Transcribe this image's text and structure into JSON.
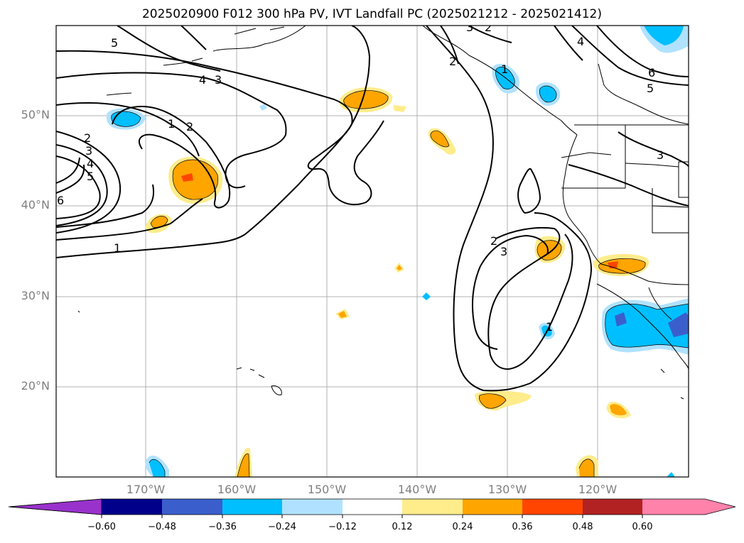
{
  "title": "2025020900 F012 300 hPa PV, IVT Landfall PC (2025021212 - 2025021412)",
  "lat_labels": [
    "50°N",
    "40°N",
    "30°N",
    "20°N"
  ],
  "lon_labels": [
    "170°W",
    "160°W",
    "150°W",
    "140°W",
    "130°W",
    "120°W"
  ],
  "colorbar": {
    "ticks": [
      "−0.60",
      "−0.48",
      "−0.36",
      "−0.24",
      "−0.12",
      "0.12",
      "0.24",
      "0.36",
      "0.48",
      "0.60"
    ],
    "colors": [
      "#9932cc",
      "#00008b",
      "#3a5fcd",
      "#00bfff",
      "#b0e2ff",
      "#ffffff",
      "#ffec8b",
      "#ffa500",
      "#ff4500",
      "#b22222",
      "#ff82ab"
    ]
  },
  "contour_labels": [
    "1",
    "2",
    "3",
    "4",
    "5",
    "6",
    "1",
    "2",
    "3",
    "4",
    "5",
    "3",
    "2",
    "1",
    "2",
    "3",
    "1",
    "2",
    "3",
    "4",
    "5",
    "6"
  ],
  "fill_colors": {
    "yellow": "#ffec8b",
    "orange": "#ffa500",
    "red": "#ff4500",
    "lightblue": "#b0e2ff",
    "blue": "#00bfff",
    "darkblue": "#3a5fcd"
  }
}
